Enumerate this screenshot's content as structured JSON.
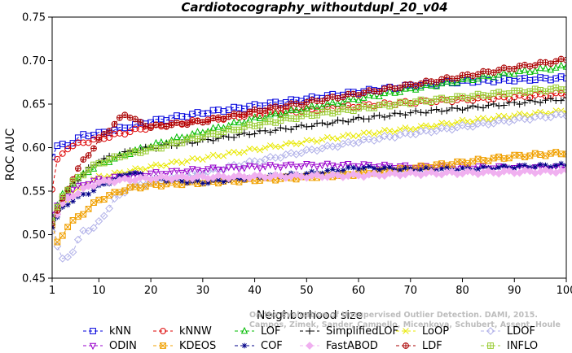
{
  "chart_data": {
    "type": "line",
    "title": "Cardiotocography_withoutdupl_20_v04",
    "xlabel": "Neighborhood size",
    "ylabel": "ROC AUC",
    "xlim": [
      1,
      100
    ],
    "ylim": [
      0.45,
      0.75
    ],
    "xticks": [
      "1",
      "10",
      "20",
      "30",
      "40",
      "50",
      "60",
      "70",
      "80",
      "90",
      "100"
    ],
    "yticks": [
      "0.45",
      "0.50",
      "0.55",
      "0.60",
      "0.65",
      "0.70",
      "0.75"
    ],
    "watermark": [
      "Campos, Zimek, Sander, Campello, Micenkova, Schubert, Assent, Houle",
      "On the Evaluation of Unsupervised Outlier Detection. DAMI, 2015."
    ],
    "legend_position": "bottom",
    "series": [
      {
        "name": "kNN",
        "color": "#0000dd",
        "marker": "square",
        "anchors": [
          [
            1,
            0.591
          ],
          [
            2,
            0.602
          ],
          [
            4,
            0.603
          ],
          [
            7,
            0.614
          ],
          [
            10,
            0.616
          ],
          [
            15,
            0.623
          ],
          [
            20,
            0.63
          ],
          [
            30,
            0.64
          ],
          [
            40,
            0.648
          ],
          [
            50,
            0.656
          ],
          [
            60,
            0.664
          ],
          [
            70,
            0.671
          ],
          [
            80,
            0.676
          ],
          [
            90,
            0.678
          ],
          [
            100,
            0.68
          ]
        ]
      },
      {
        "name": "kNNW",
        "color": "#dd0000",
        "marker": "circle",
        "anchors": [
          [
            1,
            0.553
          ],
          [
            2,
            0.585
          ],
          [
            4,
            0.6
          ],
          [
            7,
            0.606
          ],
          [
            10,
            0.61
          ],
          [
            15,
            0.617
          ],
          [
            20,
            0.624
          ],
          [
            30,
            0.631
          ],
          [
            40,
            0.638
          ],
          [
            50,
            0.643
          ],
          [
            60,
            0.648
          ],
          [
            70,
            0.652
          ],
          [
            80,
            0.655
          ],
          [
            90,
            0.658
          ],
          [
            100,
            0.662
          ]
        ]
      },
      {
        "name": "LOF",
        "color": "#00bb00",
        "marker": "triangle-up",
        "anchors": [
          [
            1,
            0.522
          ],
          [
            3,
            0.545
          ],
          [
            5,
            0.56
          ],
          [
            8,
            0.573
          ],
          [
            10,
            0.58
          ],
          [
            15,
            0.592
          ],
          [
            20,
            0.602
          ],
          [
            30,
            0.618
          ],
          [
            40,
            0.633
          ],
          [
            50,
            0.645
          ],
          [
            60,
            0.656
          ],
          [
            70,
            0.667
          ],
          [
            80,
            0.677
          ],
          [
            90,
            0.686
          ],
          [
            100,
            0.693
          ]
        ]
      },
      {
        "name": "SimplifiedLOF",
        "color": "#000000",
        "marker": "plus",
        "anchors": [
          [
            1,
            0.51
          ],
          [
            3,
            0.54
          ],
          [
            5,
            0.558
          ],
          [
            8,
            0.575
          ],
          [
            10,
            0.585
          ],
          [
            15,
            0.594
          ],
          [
            20,
            0.6
          ],
          [
            30,
            0.608
          ],
          [
            40,
            0.617
          ],
          [
            50,
            0.625
          ],
          [
            60,
            0.633
          ],
          [
            70,
            0.64
          ],
          [
            80,
            0.645
          ],
          [
            90,
            0.651
          ],
          [
            100,
            0.656
          ]
        ]
      },
      {
        "name": "LoOP",
        "color": "#e8e800",
        "marker": "x",
        "anchors": [
          [
            1,
            0.515
          ],
          [
            3,
            0.535
          ],
          [
            5,
            0.548
          ],
          [
            8,
            0.56
          ],
          [
            10,
            0.566
          ],
          [
            15,
            0.572
          ],
          [
            20,
            0.578
          ],
          [
            30,
            0.588
          ],
          [
            40,
            0.598
          ],
          [
            50,
            0.607
          ],
          [
            60,
            0.615
          ],
          [
            70,
            0.622
          ],
          [
            80,
            0.63
          ],
          [
            90,
            0.637
          ],
          [
            100,
            0.642
          ]
        ]
      },
      {
        "name": "LDOF",
        "color": "#b0b0e8",
        "marker": "diamond",
        "anchors": [
          [
            1,
            0.505
          ],
          [
            2,
            0.485
          ],
          [
            3,
            0.472
          ],
          [
            5,
            0.48
          ],
          [
            7,
            0.505
          ],
          [
            9,
            0.507
          ],
          [
            10,
            0.514
          ],
          [
            13,
            0.54
          ],
          [
            16,
            0.555
          ],
          [
            20,
            0.56
          ],
          [
            30,
            0.571
          ],
          [
            40,
            0.584
          ],
          [
            50,
            0.596
          ],
          [
            60,
            0.607
          ],
          [
            70,
            0.616
          ],
          [
            80,
            0.624
          ],
          [
            90,
            0.632
          ],
          [
            100,
            0.638
          ]
        ]
      },
      {
        "name": "ODIN",
        "color": "#9900cc",
        "marker": "triangle-down",
        "anchors": [
          [
            1,
            0.524
          ],
          [
            3,
            0.54
          ],
          [
            5,
            0.552
          ],
          [
            8,
            0.56
          ],
          [
            10,
            0.563
          ],
          [
            15,
            0.567
          ],
          [
            20,
            0.57
          ],
          [
            30,
            0.575
          ],
          [
            40,
            0.578
          ],
          [
            50,
            0.58
          ],
          [
            60,
            0.58
          ],
          [
            70,
            0.578
          ],
          [
            80,
            0.578
          ],
          [
            90,
            0.577
          ],
          [
            100,
            0.577
          ]
        ]
      },
      {
        "name": "KDEOS",
        "color": "#f0a000",
        "marker": "square-x",
        "anchors": [
          [
            1,
            0.51
          ],
          [
            2,
            0.49
          ],
          [
            3,
            0.5
          ],
          [
            4,
            0.51
          ],
          [
            6,
            0.52
          ],
          [
            8,
            0.53
          ],
          [
            10,
            0.54
          ],
          [
            15,
            0.552
          ],
          [
            20,
            0.557
          ],
          [
            30,
            0.56
          ],
          [
            40,
            0.563
          ],
          [
            50,
            0.566
          ],
          [
            60,
            0.57
          ],
          [
            70,
            0.576
          ],
          [
            80,
            0.583
          ],
          [
            90,
            0.59
          ],
          [
            100,
            0.594
          ]
        ]
      },
      {
        "name": "COF",
        "color": "#000088",
        "marker": "asterisk",
        "anchors": [
          [
            1,
            0.51
          ],
          [
            3,
            0.53
          ],
          [
            5,
            0.54
          ],
          [
            8,
            0.548
          ],
          [
            10,
            0.555
          ],
          [
            13,
            0.563
          ],
          [
            16,
            0.572
          ],
          [
            20,
            0.565
          ],
          [
            25,
            0.562
          ],
          [
            30,
            0.56
          ],
          [
            40,
            0.566
          ],
          [
            50,
            0.57
          ],
          [
            60,
            0.577
          ],
          [
            70,
            0.575
          ],
          [
            80,
            0.575
          ],
          [
            90,
            0.578
          ],
          [
            100,
            0.58
          ]
        ]
      },
      {
        "name": "FastABOD",
        "color": "#f0b0f0",
        "marker": "diamond-filled",
        "anchors": [
          [
            1,
            0.515
          ],
          [
            3,
            0.535
          ],
          [
            5,
            0.545
          ],
          [
            8,
            0.555
          ],
          [
            10,
            0.56
          ],
          [
            15,
            0.563
          ],
          [
            20,
            0.565
          ],
          [
            30,
            0.566
          ],
          [
            40,
            0.567
          ],
          [
            50,
            0.567
          ],
          [
            60,
            0.568
          ],
          [
            70,
            0.57
          ],
          [
            80,
            0.571
          ],
          [
            90,
            0.572
          ],
          [
            100,
            0.573
          ]
        ]
      },
      {
        "name": "LDF",
        "color": "#aa0000",
        "marker": "circle-plus",
        "anchors": [
          [
            1,
            0.515
          ],
          [
            3,
            0.54
          ],
          [
            5,
            0.565
          ],
          [
            7,
            0.585
          ],
          [
            9,
            0.6
          ],
          [
            11,
            0.615
          ],
          [
            13,
            0.627
          ],
          [
            15,
            0.638
          ],
          [
            16,
            0.636
          ],
          [
            18,
            0.628
          ],
          [
            20,
            0.624
          ],
          [
            30,
            0.63
          ],
          [
            40,
            0.642
          ],
          [
            50,
            0.652
          ],
          [
            60,
            0.662
          ],
          [
            70,
            0.672
          ],
          [
            80,
            0.682
          ],
          [
            90,
            0.692
          ],
          [
            100,
            0.701
          ]
        ]
      },
      {
        "name": "INFLO",
        "color": "#99cc33",
        "marker": "square-plus",
        "anchors": [
          [
            1,
            0.515
          ],
          [
            3,
            0.545
          ],
          [
            5,
            0.56
          ],
          [
            8,
            0.575
          ],
          [
            10,
            0.582
          ],
          [
            15,
            0.592
          ],
          [
            20,
            0.598
          ],
          [
            30,
            0.613
          ],
          [
            40,
            0.626
          ],
          [
            50,
            0.637
          ],
          [
            60,
            0.645
          ],
          [
            70,
            0.652
          ],
          [
            80,
            0.658
          ],
          [
            90,
            0.664
          ],
          [
            100,
            0.668
          ]
        ]
      }
    ]
  }
}
